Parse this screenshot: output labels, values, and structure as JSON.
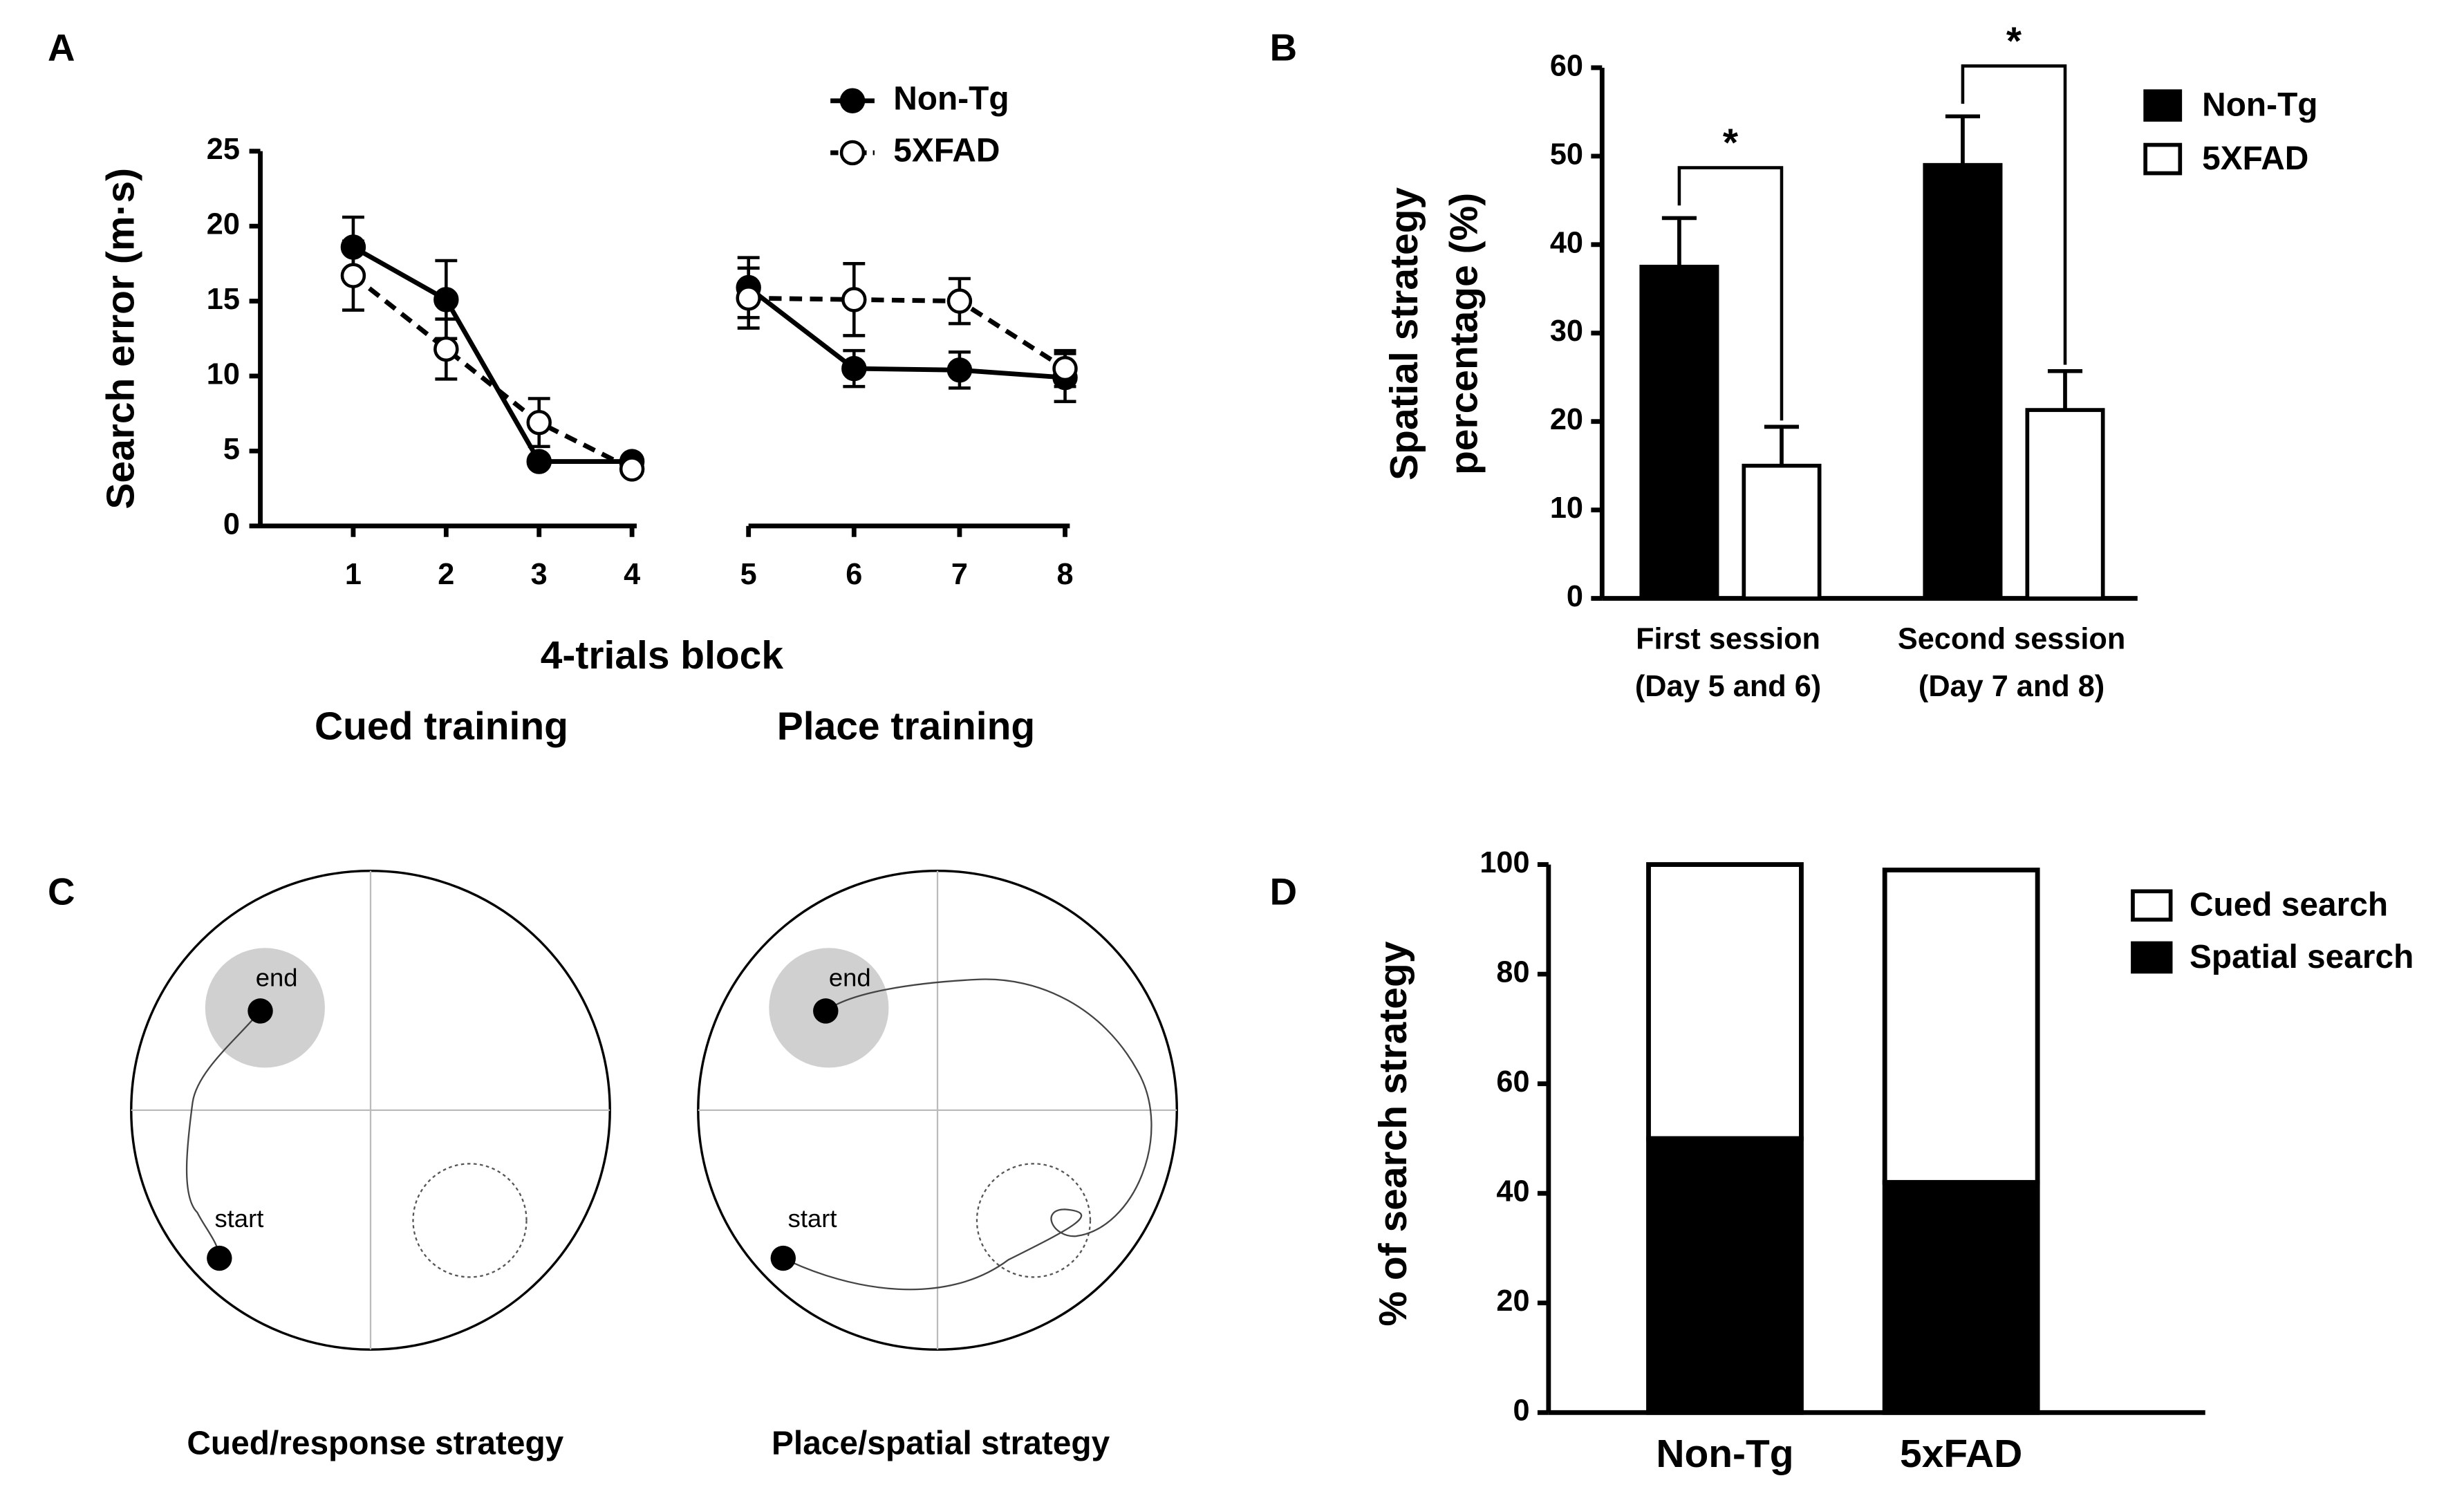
{
  "chart_data": [
    {
      "panel": "A",
      "type": "line",
      "y_label": "Search error (m·s)",
      "x_label": "4-trials block",
      "x": [
        1,
        2,
        3,
        4,
        5,
        6,
        7,
        8
      ],
      "x_groups": [
        {
          "label": "Cued training",
          "xlim": [
            0,
            4
          ],
          "xticks": [
            1,
            2,
            3,
            4
          ]
        },
        {
          "label": "Place training",
          "xlim": [
            5,
            8
          ],
          "xticks": [
            5,
            6,
            7,
            8
          ]
        }
      ],
      "ylim": [
        0,
        25
      ],
      "yticks": [
        0,
        5,
        10,
        15,
        20,
        25
      ],
      "series": [
        {
          "name": "Non-Tg",
          "color": "#000000",
          "marker": "filled",
          "dashed": false,
          "values": [
            18.6,
            15.1,
            4.3,
            4.3,
            15.9,
            10.5,
            10.4,
            9.9
          ],
          "errors": [
            2.0,
            2.6,
            0.3,
            0.3,
            2.0,
            1.2,
            1.2,
            1.6
          ]
        },
        {
          "name": "5XFAD",
          "color": "#000000",
          "marker": "open",
          "dashed": true,
          "values": [
            16.7,
            11.8,
            6.9,
            3.8,
            15.2,
            15.1,
            15.0,
            10.5
          ],
          "errors": [
            2.3,
            2.0,
            1.6,
            0.3,
            2.0,
            2.4,
            1.5,
            1.2
          ]
        }
      ]
    },
    {
      "panel": "B",
      "type": "bar",
      "y_label": [
        "Spatial strategy",
        "percentage (%)"
      ],
      "categories": [
        [
          "First session",
          "(Day 5 and 6)"
        ],
        [
          "Second session",
          "(Day 7 and 8)"
        ]
      ],
      "ylim": [
        0,
        60
      ],
      "yticks": [
        0,
        10,
        20,
        30,
        40,
        50,
        60
      ],
      "series": [
        {
          "name": "Non-Tg",
          "color": "#000000",
          "values": [
            37.5,
            49
          ],
          "errors": [
            5.5,
            5.5
          ]
        },
        {
          "name": "5XFAD",
          "color": "#ffffff",
          "values": [
            15,
            21.3
          ],
          "errors": [
            4.4,
            4.4
          ]
        }
      ],
      "annotations": [
        "*",
        "*"
      ]
    },
    {
      "panel": "D",
      "type": "stacked_bar",
      "y_label": "% of search strategy",
      "categories": [
        "Non-Tg",
        "5xFAD"
      ],
      "ylim": [
        0,
        100
      ],
      "yticks": [
        0,
        20,
        40,
        60,
        80,
        100
      ],
      "series": [
        {
          "name": "Spatial search",
          "color": "#000000",
          "values": [
            50,
            42
          ]
        },
        {
          "name": "Cued search",
          "color": "#ffffff",
          "values": [
            50,
            57
          ]
        }
      ]
    }
  ],
  "diagram": {
    "panel": "C",
    "mazes": [
      {
        "caption": "Cued/response strategy",
        "start_label": "start",
        "end_label": "end"
      },
      {
        "caption": "Place/spatial strategy",
        "start_label": "start",
        "end_label": "end"
      }
    ]
  }
}
